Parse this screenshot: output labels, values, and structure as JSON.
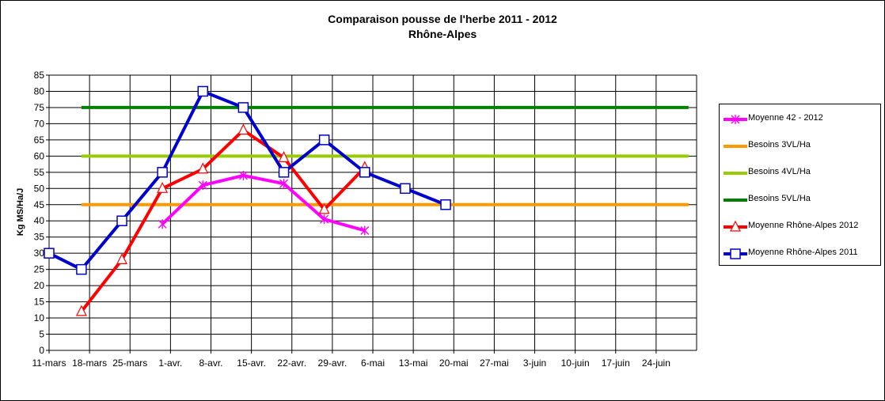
{
  "chart_data": {
    "type": "line",
    "title": "Comparaison pousse de l'herbe 2011 - 2012",
    "subtitle": "Rhône-Alpes",
    "ylabel": "Kg MS/Ha/J",
    "xlabel": "",
    "ylim": [
      0,
      85
    ],
    "y_ticks": [
      0,
      5,
      10,
      15,
      20,
      25,
      30,
      35,
      40,
      45,
      50,
      55,
      60,
      65,
      70,
      75,
      80,
      85
    ],
    "categories": [
      "11-mars",
      "18-mars",
      "25-mars",
      "1-avr.",
      "8-avr.",
      "15-avr.",
      "22-avr.",
      "29-avr.",
      "6-mai",
      "13-mai",
      "20-mai",
      "27-mai",
      "3-juin",
      "10-juin",
      "17-juin",
      "24-juin"
    ],
    "grid": true,
    "legend_position": "right",
    "series": [
      {
        "name": "Moyenne 42 - 2012",
        "color": "#ff00ff",
        "marker": "asterisk",
        "points": [
          [
            2.8,
            39
          ],
          [
            3.8,
            51
          ],
          [
            4.8,
            54
          ],
          [
            5.8,
            51.5
          ],
          [
            6.8,
            40.5
          ],
          [
            7.8,
            37
          ]
        ]
      },
      {
        "name": "Besoins 3VL/Ha",
        "color": "#ff9900",
        "marker": "none",
        "points": [
          [
            0.8,
            45
          ],
          [
            15.8,
            45
          ]
        ]
      },
      {
        "name": "Besoins 4VL/Ha",
        "color": "#99cc00",
        "marker": "none",
        "points": [
          [
            0.8,
            60
          ],
          [
            15.8,
            60
          ]
        ]
      },
      {
        "name": "Besoins 5VL/Ha",
        "color": "#008000",
        "marker": "none",
        "points": [
          [
            0.8,
            75
          ],
          [
            15.8,
            75
          ]
        ]
      },
      {
        "name": "Moyenne Rhône-Alpes 2012",
        "color": "#ff0000",
        "marker": "triangle",
        "points": [
          [
            0.8,
            12
          ],
          [
            1.8,
            28
          ],
          [
            2.8,
            50
          ],
          [
            3.8,
            56
          ],
          [
            4.8,
            68
          ],
          [
            5.8,
            59.5
          ],
          [
            6.8,
            43.5
          ],
          [
            7.8,
            56.5
          ]
        ]
      },
      {
        "name": "Moyenne Rhône-Alpes 2011",
        "color": "#0000cc",
        "marker": "square",
        "points": [
          [
            0,
            30
          ],
          [
            0.8,
            25
          ],
          [
            1.8,
            40
          ],
          [
            2.8,
            55
          ],
          [
            3.8,
            80
          ],
          [
            4.8,
            75
          ],
          [
            5.8,
            55
          ],
          [
            6.8,
            65
          ],
          [
            7.8,
            55
          ],
          [
            8.8,
            50
          ],
          [
            9.8,
            45
          ]
        ]
      }
    ]
  }
}
